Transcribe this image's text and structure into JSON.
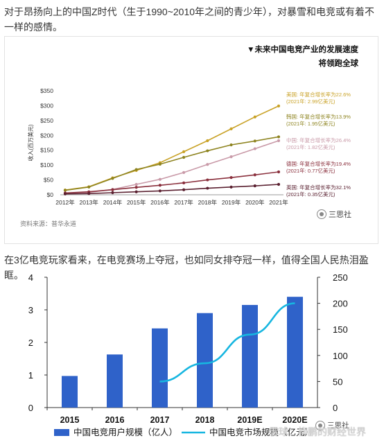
{
  "text": {
    "intro": "对于昂扬向上的中国Z时代（生于1990~2010年之间的青少年），对暴雪和电竞或有着不一样的感情。",
    "intro2": "在3亿电竞玩家看来，在电竞赛场上夺冠，也如同女排夺冠一样，值得全国人民热泪盈眶。"
  },
  "card": {
    "header1": "▼未来中国电竞产业的发展速度",
    "header2": "将领跑全球",
    "source": "资料来源：普华永道",
    "watermark": "三思社"
  },
  "bottom": {
    "watermark": "三思社",
    "overlay_text": "雪球：柳鹏的财经世界"
  },
  "chart_data": [
    {
      "type": "line",
      "title": "未来中国电竞产业的发展速度 将领跑全球",
      "ylabel": "收入(百万美元)",
      "xlabel": "",
      "x": [
        "2012年",
        "2013年",
        "2014年",
        "2015年",
        "2016年",
        "2017年",
        "2018年",
        "2019年",
        "2020年",
        "2021年"
      ],
      "ylim": [
        0,
        350
      ],
      "yticks": [
        "$0",
        "$50",
        "$100",
        "$150",
        "$200",
        "$250",
        "$300",
        "$350"
      ],
      "series": [
        {
          "name": "美国",
          "color": "#c9a227",
          "values": [
            16,
            27,
            57,
            82,
            108,
            145,
            182,
            222,
            262,
            299
          ],
          "label1": "美国: 年复合增长率为22.6%",
          "label2": "(2021年: 2.99亿美元)"
        },
        {
          "name": "韩国",
          "color": "#8e8420",
          "values": [
            15,
            26,
            55,
            85,
            103,
            126,
            148,
            168,
            181,
            195
          ],
          "label1": "韩国: 年复合增长率为13.9%",
          "label2": "(2021年: 1.95亿美元)"
        },
        {
          "name": "中国",
          "color": "#c99aa8",
          "values": [
            5,
            8,
            18,
            35,
            52,
            75,
            102,
            128,
            155,
            182
          ],
          "label1": "中国: 年复合增长率为26.4%",
          "label2": "(2021年: 1.82亿美元)"
        },
        {
          "name": "德国",
          "color": "#8a2f3c",
          "values": [
            6,
            10,
            17,
            25,
            32,
            40,
            50,
            58,
            67,
            77
          ],
          "label1": "德国: 年复合增长率为19.4%",
          "label2": "(2021年: 0.77亿美元)"
        },
        {
          "name": "英国",
          "color": "#5a2030",
          "values": [
            3,
            4,
            7,
            10,
            13,
            17,
            22,
            26,
            30,
            35
          ],
          "label1": "英国: 年复合增长率为32.1%",
          "label2": "(2021年: 0.35亿美元)"
        }
      ]
    },
    {
      "type": "bar",
      "categories": [
        "2015",
        "2016",
        "2017",
        "2018",
        "2019E",
        "2020E"
      ],
      "series": [
        {
          "name": "中国电竞用户规模（亿人）",
          "type": "bar",
          "axis": "left",
          "color": "#2f62c9",
          "values": [
            0.97,
            1.63,
            2.43,
            2.9,
            3.15,
            3.4
          ]
        },
        {
          "name": "中国电竞市场规模（亿元）",
          "type": "line",
          "axis": "right",
          "color": "#17b6e0",
          "values": [
            null,
            null,
            50,
            85,
            140,
            200
          ]
        }
      ],
      "ylim": [
        0,
        4
      ],
      "y2lim": [
        0,
        250
      ],
      "yticks": [
        "0",
        "1",
        "2",
        "3",
        "4"
      ],
      "y2ticks": [
        "0",
        "50",
        "100",
        "150",
        "200",
        "250"
      ]
    }
  ]
}
